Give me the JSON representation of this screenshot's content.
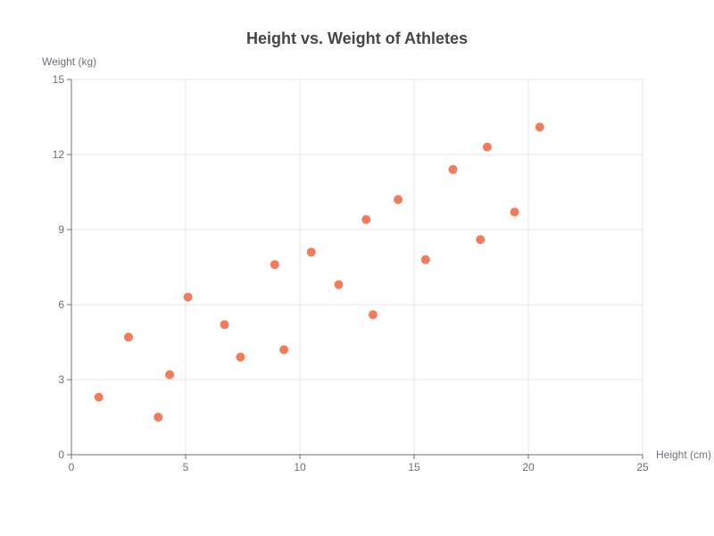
{
  "chart_data": {
    "type": "scatter",
    "title": "Height vs. Weight of Athletes",
    "xlabel": "Height (cm)",
    "ylabel": "Weight (kg)",
    "xlim": [
      0,
      25
    ],
    "ylim": [
      0,
      15
    ],
    "x_ticks": [
      "0",
      "5",
      "10",
      "15",
      "20",
      "25"
    ],
    "y_ticks": [
      "0",
      "3",
      "6",
      "9",
      "12",
      "15"
    ],
    "grid": true,
    "marker_color": "#f47b5a",
    "points": [
      {
        "x": 1.2,
        "y": 2.3
      },
      {
        "x": 2.5,
        "y": 4.7
      },
      {
        "x": 3.8,
        "y": 1.5
      },
      {
        "x": 4.3,
        "y": 3.2
      },
      {
        "x": 5.1,
        "y": 6.3
      },
      {
        "x": 6.7,
        "y": 5.2
      },
      {
        "x": 7.4,
        "y": 3.9
      },
      {
        "x": 8.9,
        "y": 7.6
      },
      {
        "x": 9.3,
        "y": 4.2
      },
      {
        "x": 10.5,
        "y": 8.1
      },
      {
        "x": 11.7,
        "y": 6.8
      },
      {
        "x": 12.9,
        "y": 9.4
      },
      {
        "x": 13.2,
        "y": 5.6
      },
      {
        "x": 14.3,
        "y": 10.2
      },
      {
        "x": 15.5,
        "y": 7.8
      },
      {
        "x": 16.7,
        "y": 11.4
      },
      {
        "x": 17.9,
        "y": 8.6
      },
      {
        "x": 18.2,
        "y": 12.3
      },
      {
        "x": 19.4,
        "y": 9.7
      },
      {
        "x": 20.5,
        "y": 13.1
      }
    ]
  }
}
